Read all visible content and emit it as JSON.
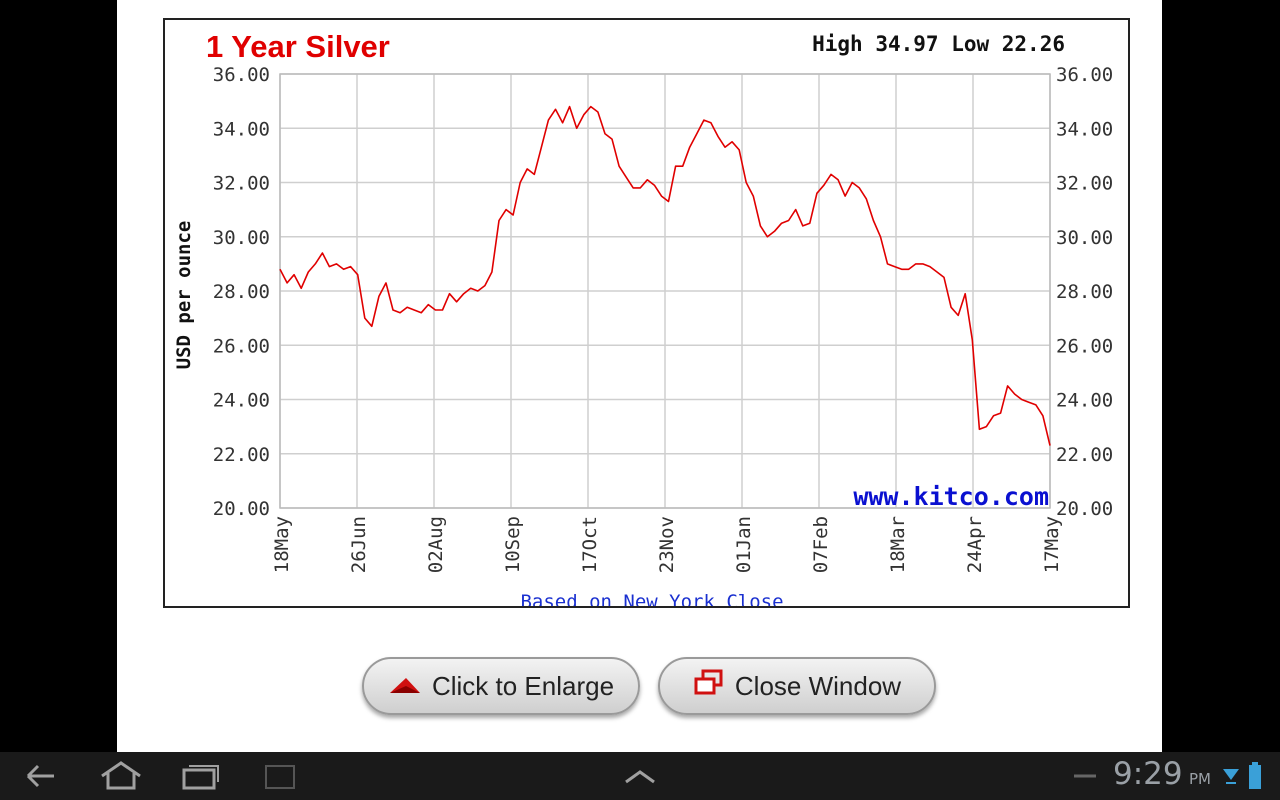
{
  "chart_data": {
    "type": "line",
    "title": "1 Year Silver",
    "stats": "High 34.97 Low 22.26",
    "ylabel": "USD per ounce",
    "xlabel": "Based on New York Close",
    "watermark": "www.kitco.com",
    "ylim": [
      20,
      36
    ],
    "y_ticks": [
      "20.00",
      "22.00",
      "24.00",
      "26.00",
      "28.00",
      "30.00",
      "32.00",
      "34.00",
      "36.00"
    ],
    "x_ticks": [
      "18May",
      "26Jun",
      "02Aug",
      "10Sep",
      "17Oct",
      "23Nov",
      "01Jan",
      "07Feb",
      "18Mar",
      "24Apr",
      "17May"
    ],
    "grid": true,
    "line_color": "#e00000",
    "series": [
      {
        "values": [
          28.8,
          28.3,
          28.6,
          28.1,
          28.7,
          29.0,
          29.4,
          28.9,
          29.0,
          28.8,
          28.9,
          28.6,
          27.0,
          26.7,
          27.8,
          28.3,
          27.3,
          27.2,
          27.4,
          27.3,
          27.2,
          27.5,
          27.3,
          27.3,
          27.9,
          27.6,
          27.9,
          28.1,
          28.0,
          28.2,
          28.7,
          30.6,
          31.0,
          30.8,
          32.0,
          32.5,
          32.3,
          33.3,
          34.3,
          34.7,
          34.2,
          34.8,
          34.0,
          34.5,
          34.8,
          34.6,
          33.8,
          33.6,
          32.6,
          32.2,
          31.8,
          31.8,
          32.1,
          31.9,
          31.5,
          31.3,
          32.6,
          32.6,
          33.3,
          33.8,
          34.3,
          34.2,
          33.7,
          33.3,
          33.5,
          33.2,
          32.0,
          31.5,
          30.4,
          30.0,
          30.2,
          30.5,
          30.6,
          31.0,
          30.4,
          30.5,
          31.6,
          31.9,
          32.3,
          32.1,
          31.5,
          32.0,
          31.8,
          31.4,
          30.6,
          30.0,
          29.0,
          28.9,
          28.8,
          28.8,
          29.0,
          29.0,
          28.9,
          28.7,
          28.5,
          27.4,
          27.1,
          27.9,
          26.2,
          22.9,
          23.0,
          23.4,
          23.5,
          24.5,
          24.2,
          24.0,
          23.9,
          23.8,
          23.4,
          22.3
        ]
      }
    ]
  },
  "buttons": {
    "enlarge": "Click to Enlarge",
    "close": "Close Window"
  },
  "status_bar": {
    "time": "9:29",
    "ampm": "PM"
  }
}
